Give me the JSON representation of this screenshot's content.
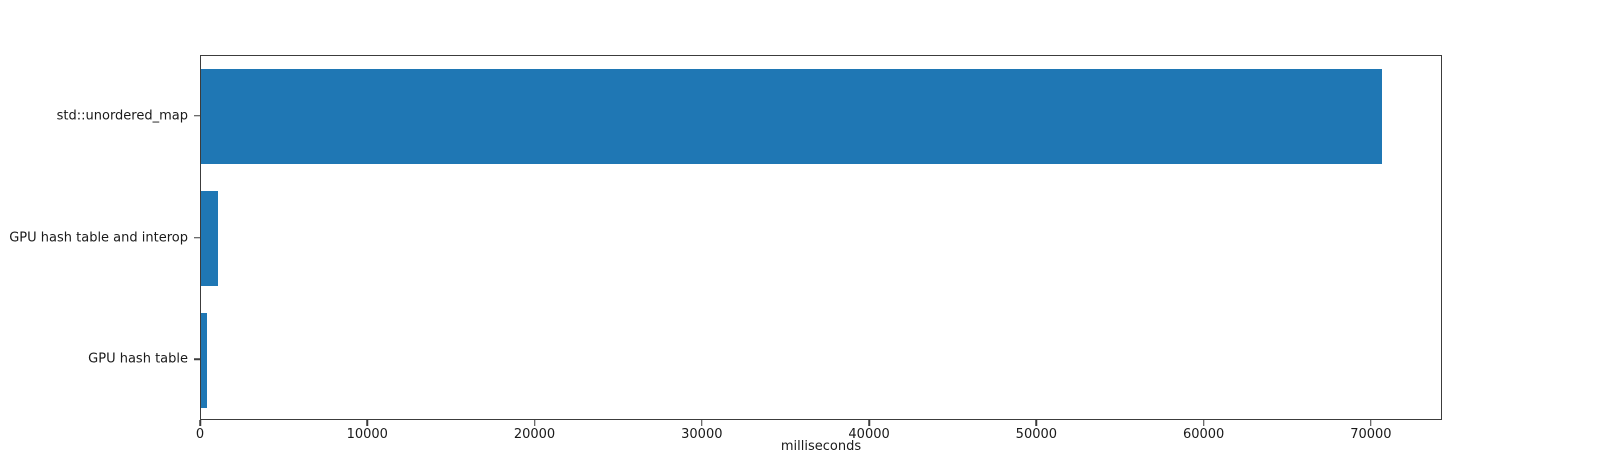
{
  "chart_data": {
    "type": "bar",
    "orientation": "horizontal",
    "title": "",
    "xlabel": "milliseconds",
    "ylabel": "",
    "categories": [
      "std::unordered_map",
      "GPU hash table and interop",
      "GPU hash table"
    ],
    "values": [
      70600,
      1000,
      360
    ],
    "xlim": [
      0,
      74250
    ],
    "xticks": [
      0,
      10000,
      20000,
      30000,
      40000,
      50000,
      60000,
      70000
    ],
    "xtick_labels": [
      "0",
      "10000",
      "20000",
      "30000",
      "40000",
      "50000",
      "60000",
      "70000"
    ],
    "bar_color": "#1f77b4",
    "grid": false,
    "legend": null,
    "background_color": "#ffffff"
  }
}
